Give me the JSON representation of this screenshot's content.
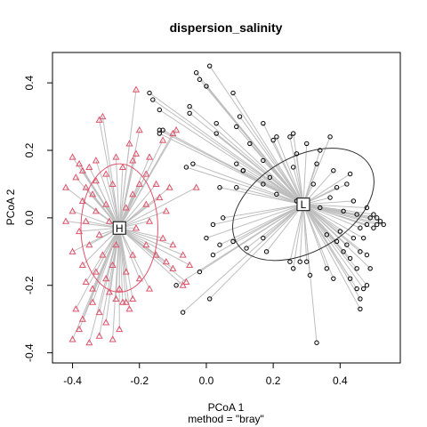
{
  "chart_data": {
    "type": "scatter",
    "title": "dispersion_salinity",
    "xlabel": "PCoA 1",
    "ylabel": "PCoA 2",
    "subtitle": "method = \"bray\"",
    "xlim": [
      -0.46,
      0.58
    ],
    "ylim": [
      -0.43,
      0.49
    ],
    "xticks": [
      -0.4,
      -0.2,
      0.0,
      0.2,
      0.4
    ],
    "yticks": [
      -0.4,
      -0.2,
      0.0,
      0.2,
      0.4
    ],
    "xtick_labels": [
      "-0.4",
      "-0.2",
      "0.0",
      "0.2",
      "0.4"
    ],
    "ytick_labels": [
      "-0.4",
      "-0.2",
      "0.0",
      "0.2",
      "0.4"
    ],
    "grid": false,
    "colors": {
      "H": "#df536b",
      "L": "#000000",
      "spokes": "#bebebe",
      "ellipse_H": "#df536b",
      "ellipse_L": "#333333"
    },
    "series": [
      {
        "name": "H",
        "marker": "triangle",
        "centroid": [
          -0.26,
          -0.03
        ],
        "ellipse": {
          "rx": 0.115,
          "ry": 0.19,
          "angle": 0
        },
        "points": [
          [
            -0.21,
            0.38
          ],
          [
            -0.31,
            0.3
          ],
          [
            -0.32,
            0.29
          ],
          [
            -0.2,
            0.26
          ],
          [
            -0.09,
            0.26
          ],
          [
            -0.1,
            0.25
          ],
          [
            -0.13,
            0.23
          ],
          [
            -0.23,
            0.22
          ],
          [
            -0.21,
            0.19
          ],
          [
            -0.17,
            0.18
          ],
          [
            -0.27,
            0.18
          ],
          [
            -0.22,
            0.17
          ],
          [
            -0.33,
            0.17
          ],
          [
            -0.4,
            0.18
          ],
          [
            -0.38,
            0.16
          ],
          [
            -0.35,
            0.15
          ],
          [
            -0.25,
            0.15
          ],
          [
            -0.18,
            0.13
          ],
          [
            -0.3,
            0.13
          ],
          [
            -0.37,
            0.14
          ],
          [
            -0.39,
            0.12
          ],
          [
            -0.33,
            0.11
          ],
          [
            -0.2,
            0.1
          ],
          [
            -0.15,
            0.1
          ],
          [
            -0.42,
            0.09
          ],
          [
            -0.36,
            0.09
          ],
          [
            -0.28,
            0.1
          ],
          [
            -0.34,
            0.07
          ],
          [
            -0.22,
            0.07
          ],
          [
            -0.11,
            0.09
          ],
          [
            -0.03,
            0.09
          ],
          [
            -0.14,
            0.06
          ],
          [
            -0.37,
            0.05
          ],
          [
            -0.3,
            0.04
          ],
          [
            -0.18,
            0.04
          ],
          [
            -0.4,
            0.02
          ],
          [
            -0.33,
            0.02
          ],
          [
            -0.24,
            0.03
          ],
          [
            -0.12,
            0.02
          ],
          [
            -0.42,
            -0.01
          ],
          [
            -0.36,
            -0.01
          ],
          [
            -0.29,
            -0.01
          ],
          [
            -0.17,
            -0.01
          ],
          [
            -0.38,
            -0.04
          ],
          [
            -0.32,
            -0.05
          ],
          [
            -0.21,
            -0.03
          ],
          [
            -0.13,
            -0.06
          ],
          [
            -0.35,
            -0.08
          ],
          [
            -0.27,
            -0.08
          ],
          [
            -0.18,
            -0.08
          ],
          [
            -0.1,
            -0.08
          ],
          [
            -0.4,
            -0.1
          ],
          [
            -0.31,
            -0.11
          ],
          [
            -0.22,
            -0.11
          ],
          [
            -0.15,
            -0.11
          ],
          [
            -0.07,
            -0.11
          ],
          [
            -0.37,
            -0.14
          ],
          [
            -0.28,
            -0.14
          ],
          [
            -0.12,
            -0.13
          ],
          [
            -0.33,
            -0.16
          ],
          [
            -0.24,
            -0.16
          ],
          [
            -0.1,
            -0.15
          ],
          [
            -0.05,
            -0.14
          ],
          [
            -0.36,
            -0.19
          ],
          [
            -0.3,
            -0.18
          ],
          [
            -0.2,
            -0.18
          ],
          [
            -0.06,
            -0.19
          ],
          [
            -0.34,
            -0.21
          ],
          [
            -0.26,
            -0.21
          ],
          [
            -0.17,
            -0.21
          ],
          [
            -0.07,
            -0.2
          ],
          [
            -0.29,
            -0.22
          ],
          [
            -0.22,
            -0.24
          ],
          [
            -0.25,
            -0.25
          ],
          [
            -0.27,
            -0.24
          ],
          [
            -0.34,
            -0.25
          ],
          [
            -0.39,
            -0.27
          ],
          [
            -0.32,
            -0.28
          ],
          [
            -0.23,
            -0.27
          ],
          [
            -0.37,
            -0.3
          ],
          [
            -0.3,
            -0.31
          ],
          [
            -0.38,
            -0.33
          ],
          [
            -0.26,
            -0.33
          ],
          [
            -0.32,
            -0.35
          ],
          [
            -0.4,
            -0.36
          ],
          [
            -0.35,
            -0.37
          ],
          [
            -0.28,
            -0.36
          ],
          [
            -0.24,
            -0.25
          ]
        ]
      },
      {
        "name": "L",
        "marker": "circle",
        "centroid": [
          0.29,
          0.04
        ],
        "ellipse": {
          "rx": 0.23,
          "ry": 0.14,
          "angle": -30
        },
        "points": [
          [
            0.01,
            0.45
          ],
          [
            -0.17,
            0.37
          ],
          [
            -0.03,
            0.43
          ],
          [
            -0.02,
            0.41
          ],
          [
            0.0,
            0.39
          ],
          [
            0.08,
            0.37
          ],
          [
            -0.16,
            0.35
          ],
          [
            -0.05,
            0.33
          ],
          [
            -0.14,
            0.32
          ],
          [
            -0.05,
            0.31
          ],
          [
            0.1,
            0.3
          ],
          [
            0.03,
            0.28
          ],
          [
            0.17,
            0.28
          ],
          [
            -0.13,
            0.26
          ],
          [
            -0.14,
            0.26
          ],
          [
            0.03,
            0.25
          ],
          [
            0.09,
            0.27
          ],
          [
            0.13,
            0.22
          ],
          [
            0.2,
            0.23
          ],
          [
            -0.14,
            0.25
          ],
          [
            0.21,
            0.24
          ],
          [
            0.26,
            0.25
          ],
          [
            0.25,
            0.24
          ],
          [
            0.3,
            0.22
          ],
          [
            0.34,
            0.2
          ],
          [
            0.37,
            0.24
          ],
          [
            0.27,
            0.19
          ],
          [
            0.17,
            0.17
          ],
          [
            0.09,
            0.16
          ],
          [
            -0.04,
            0.16
          ],
          [
            -0.06,
            0.15
          ],
          [
            0.11,
            0.14
          ],
          [
            0.19,
            0.12
          ],
          [
            0.26,
            0.15
          ],
          [
            0.33,
            0.16
          ],
          [
            0.38,
            0.14
          ],
          [
            0.43,
            0.13
          ],
          [
            0.42,
            0.1
          ],
          [
            0.32,
            0.1
          ],
          [
            0.39,
            0.09
          ],
          [
            0.17,
            0.1
          ],
          [
            0.09,
            0.09
          ],
          [
            0.04,
            0.09
          ],
          [
            0.21,
            0.07
          ],
          [
            0.27,
            0.05
          ],
          [
            0.37,
            0.06
          ],
          [
            0.44,
            0.05
          ],
          [
            0.48,
            0.03
          ],
          [
            0.41,
            0.02
          ],
          [
            0.34,
            0.03
          ],
          [
            0.45,
            0.01
          ],
          [
            0.49,
            0.0
          ],
          [
            0.5,
            0.01
          ],
          [
            0.51,
            0.0
          ],
          [
            0.52,
            -0.01
          ],
          [
            0.51,
            -0.02
          ],
          [
            0.53,
            -0.02
          ],
          [
            0.5,
            -0.03
          ],
          [
            0.48,
            -0.02
          ],
          [
            0.46,
            -0.03
          ],
          [
            0.47,
            -0.06
          ],
          [
            0.44,
            -0.06
          ],
          [
            0.4,
            -0.04
          ],
          [
            0.39,
            -0.07
          ],
          [
            0.36,
            -0.05
          ],
          [
            0.42,
            -0.08
          ],
          [
            0.46,
            -0.1
          ],
          [
            0.48,
            -0.11
          ],
          [
            0.43,
            -0.12
          ],
          [
            0.41,
            -0.1
          ],
          [
            0.49,
            -0.15
          ],
          [
            0.45,
            -0.15
          ],
          [
            0.43,
            -0.18
          ],
          [
            0.38,
            -0.18
          ],
          [
            0.45,
            -0.21
          ],
          [
            0.47,
            -0.21
          ],
          [
            0.48,
            -0.2
          ],
          [
            0.46,
            -0.24
          ],
          [
            0.46,
            -0.27
          ],
          [
            0.36,
            -0.15
          ],
          [
            0.3,
            -0.13
          ],
          [
            0.28,
            -0.13
          ],
          [
            0.25,
            -0.13
          ],
          [
            0.31,
            -0.17
          ],
          [
            0.26,
            -0.15
          ],
          [
            0.18,
            -0.1
          ],
          [
            0.12,
            -0.09
          ],
          [
            0.17,
            -0.06
          ],
          [
            0.08,
            -0.07
          ],
          [
            0.04,
            -0.08
          ],
          [
            0.02,
            -0.02
          ],
          [
            0.05,
            0.0
          ],
          [
            0.0,
            -0.06
          ],
          [
            0.02,
            -0.11
          ],
          [
            -0.02,
            -0.16
          ],
          [
            0.01,
            -0.24
          ],
          [
            -0.09,
            -0.2
          ],
          [
            -0.07,
            -0.28
          ],
          [
            0.33,
            -0.37
          ],
          [
            0.11,
            0.14
          ]
        ]
      }
    ]
  }
}
